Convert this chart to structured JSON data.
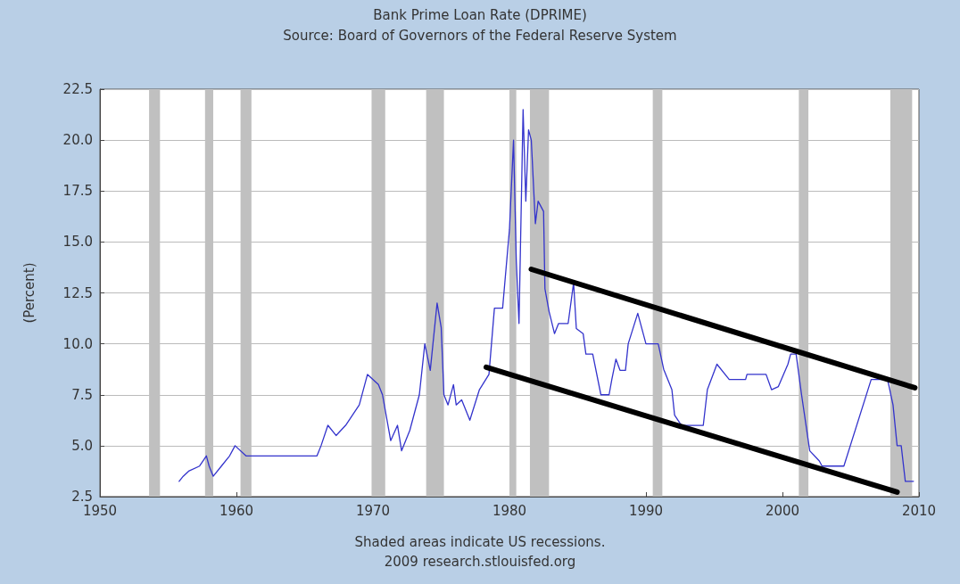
{
  "chart_data": {
    "type": "line",
    "title": "Bank Prime Loan Rate (DPRIME)",
    "subtitle": "Source: Board of Governors of the Federal Reserve System",
    "ylabel": "(Percent)",
    "annotations": [
      "Shaded areas indicate US recessions.",
      "2009 research.stlouisfed.org"
    ],
    "xlim": [
      1950,
      2010
    ],
    "xticks": [
      1950,
      1960,
      1970,
      1980,
      1990,
      2000,
      2010
    ],
    "ylim": [
      2.5,
      22.5
    ],
    "yticks": [
      2.5,
      {
        "value": 5,
        "label": "5.0"
      },
      7.5,
      {
        "value": 10,
        "label": "10.0"
      },
      12.5,
      {
        "value": 15,
        "label": "15.0"
      },
      17.5,
      {
        "value": 20,
        "label": "20.0"
      },
      22.5
    ],
    "grid": "y",
    "marker": "none",
    "line_style": "solid",
    "bands": [
      {
        "axis": "x",
        "from": 1953.6,
        "to": 1954.4,
        "color": "#c0c0c0"
      },
      {
        "axis": "x",
        "from": 1957.7,
        "to": 1958.3,
        "color": "#c0c0c0"
      },
      {
        "axis": "x",
        "from": 1960.3,
        "to": 1961.1,
        "color": "#c0c0c0"
      },
      {
        "axis": "x",
        "from": 1969.9,
        "to": 1970.9,
        "color": "#c0c0c0"
      },
      {
        "axis": "x",
        "from": 1973.9,
        "to": 1975.2,
        "color": "#c0c0c0"
      },
      {
        "axis": "x",
        "from": 1980.0,
        "to": 1980.5,
        "color": "#c0c0c0"
      },
      {
        "axis": "x",
        "from": 1981.5,
        "to": 1982.9,
        "color": "#c0c0c0"
      },
      {
        "axis": "x",
        "from": 1990.5,
        "to": 1991.2,
        "color": "#c0c0c0"
      },
      {
        "axis": "x",
        "from": 2001.2,
        "to": 2001.9,
        "color": "#c0c0c0"
      },
      {
        "axis": "x",
        "from": 2007.9,
        "to": 2009.5,
        "color": "#c0c0c0"
      }
    ],
    "series": [
      {
        "color": "#3333cc",
        "x": [
          1955.8,
          1956.1,
          1956.5,
          1957.3,
          1957.8,
          1958.0,
          1958.3,
          1958.9,
          1959.5,
          1959.9,
          1960.7,
          1965.9,
          1966.2,
          1966.7,
          1967.3,
          1968.0,
          1968.5,
          1969.0,
          1969.6,
          1970.4,
          1970.7,
          1971.3,
          1971.8,
          1972.1,
          1972.7,
          1973.4,
          1973.8,
          1974.2,
          1974.7,
          1975.0,
          1975.2,
          1975.5,
          1975.9,
          1976.1,
          1976.5,
          1977.1,
          1977.8,
          1978.5,
          1978.9,
          1979.5,
          1979.7,
          1980.0,
          1980.3,
          1980.5,
          1980.7,
          1981.0,
          1981.2,
          1981.4,
          1981.6,
          1981.9,
          1982.1,
          1982.5,
          1982.6,
          1982.9,
          1983.3,
          1983.6,
          1984.3,
          1984.7,
          1984.9,
          1985.4,
          1985.6,
          1986.1,
          1986.7,
          1987.3,
          1987.5,
          1987.8,
          1988.1,
          1988.5,
          1988.7,
          1989.4,
          1990.0,
          1990.9,
          1991.3,
          1991.9,
          1992.1,
          1992.6,
          1994.2,
          1994.5,
          1995.2,
          1996.1,
          1997.3,
          1997.4,
          1998.8,
          1999.2,
          1999.7,
          2000.4,
          2000.6,
          2001.0,
          2001.4,
          2002.0,
          2002.7,
          2002.9,
          2003.6,
          2004.5,
          2006.5,
          2007.7,
          2008.1,
          2008.4,
          2008.7,
          2009.0,
          2009.6
        ],
        "values": [
          3.25,
          3.5,
          3.75,
          4.0,
          4.5,
          4.0,
          3.5,
          4.0,
          4.5,
          5.0,
          4.5,
          4.5,
          5.0,
          6.0,
          5.5,
          6.0,
          6.5,
          7.0,
          8.5,
          8.0,
          7.5,
          5.25,
          6.0,
          4.75,
          5.75,
          7.5,
          10.0,
          8.7,
          12.0,
          10.8,
          7.5,
          7.0,
          8.0,
          7.0,
          7.25,
          6.25,
          7.75,
          8.5,
          11.75,
          11.75,
          13.3,
          15.6,
          20.0,
          14.1,
          11.0,
          21.5,
          17.0,
          20.5,
          20.0,
          15.9,
          17.0,
          16.5,
          12.7,
          11.6,
          10.5,
          11.0,
          11.0,
          13.0,
          10.75,
          10.5,
          9.5,
          9.5,
          7.5,
          7.5,
          8.25,
          9.25,
          8.7,
          8.7,
          10.0,
          11.5,
          10.0,
          10.0,
          8.75,
          7.75,
          6.5,
          6.0,
          6.0,
          7.75,
          9.0,
          8.25,
          8.25,
          8.5,
          8.5,
          7.75,
          7.9,
          9.0,
          9.5,
          9.5,
          7.5,
          4.75,
          4.25,
          4.0,
          4.0,
          4.0,
          8.25,
          8.25,
          7.0,
          5.0,
          5.0,
          3.25,
          3.25
        ]
      },
      {
        "type": "line",
        "color": "#000000",
        "x": [
          1981.6,
          2009.7
        ],
        "values": [
          13.66,
          7.84
        ]
      },
      {
        "type": "line",
        "color": "#000000",
        "x": [
          1978.3,
          2008.4
        ],
        "values": [
          8.85,
          2.72
        ]
      }
    ]
  }
}
